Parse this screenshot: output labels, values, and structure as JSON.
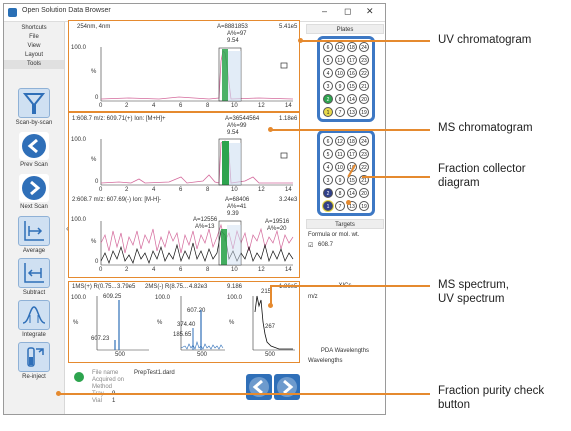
{
  "window": {
    "title": "Open Solution Data Browser",
    "min": "–",
    "max": "◻",
    "close": "✕"
  },
  "menu": [
    "Shortcuts",
    "File",
    "View",
    "Layout",
    "Tools"
  ],
  "tools": [
    {
      "label": "Scan-by-scan",
      "icon": "funnel-icon"
    },
    {
      "label": "Prev Scan",
      "icon": "arrow-left-icon"
    },
    {
      "label": "Next Scan",
      "icon": "arrow-right-icon"
    },
    {
      "label": "Average",
      "icon": "average-icon"
    },
    {
      "label": "Subtract",
      "icon": "subtract-icon"
    },
    {
      "label": "Integrate",
      "icon": "integrate-icon"
    },
    {
      "label": "Re-inject",
      "icon": "reinject-icon"
    }
  ],
  "uv_panel": {
    "title": "254nm, 4nm",
    "area": "A=8881853",
    "pct": "A%=97",
    "tt": "9.54",
    "scale": "5.41e5",
    "y_top": "100.0",
    "y_unit": "%",
    "y_bot": "0",
    "xticks": [
      "0",
      "2",
      "4",
      "6",
      "8",
      "10",
      "12",
      "14"
    ]
  },
  "ms_panel1": {
    "title": "1:608.7 m/z: 609.71(+) Ion: [M+H]+",
    "area": "A=36544564",
    "pct": "A%=99",
    "tt": "9.54",
    "scale": "1.18e6",
    "y_top": "100.0",
    "y_unit": "%",
    "y_bot": "0",
    "xticks": [
      "0",
      "2",
      "4",
      "6",
      "8",
      "10",
      "12",
      "14"
    ]
  },
  "ms_panel2": {
    "title": "2:608.7 m/z: 607.69(-) Ion: [M-H]-",
    "area": "A=68406",
    "pct": "A%=41",
    "tt": "9.39",
    "scale": "3.24e3",
    "ann": [
      "A=12556",
      "A%=13",
      "A=19516",
      "A%=20"
    ],
    "y_top": "100.0",
    "y_unit": "%",
    "y_bot": "0",
    "xticks": [
      "0",
      "2",
      "4",
      "6",
      "8",
      "10",
      "12",
      "14"
    ]
  },
  "spectra": {
    "header": [
      "1MS(+) R(0.75...",
      "3.79e5",
      "2MS(-) R(8.75...",
      "4.82e3",
      "9.186",
      "1.86e5"
    ],
    "s1": [
      "609.25",
      "607.23"
    ],
    "s2": [
      "607.20",
      "374.40",
      "185.65"
    ],
    "s3": [
      "215",
      "267"
    ],
    "y_top": "100.0",
    "y_unit": "%",
    "xtick": "500",
    "xtick3": "500"
  },
  "bottom": {
    "file_label": "File name",
    "file": "PrepTest1.dard",
    "acq": "Acquired on",
    "method": "Method",
    "tray_label": "Tray",
    "tray": "9",
    "vial_label": "Vial",
    "vial": "1"
  },
  "right": {
    "plates": "Plates",
    "targets": "Targets",
    "formula": "Formula or mol. wt.",
    "formula_val": "608.7",
    "xics": "XICs",
    "mz": "m/z",
    "pda": "PDA Wavelengths",
    "wl": "Wavelengths",
    "plate1": [
      "6",
      "12",
      "18",
      "24",
      "5",
      "11",
      "17",
      "23",
      "4",
      "10",
      "16",
      "22",
      "3",
      "9",
      "15",
      "21",
      "2",
      "8",
      "14",
      "20",
      "1",
      "7",
      "13",
      "19"
    ],
    "plate2": [
      "6",
      "12",
      "18",
      "24",
      "5",
      "11",
      "17",
      "23",
      "4",
      "10",
      "16",
      "22",
      "3",
      "9",
      "15",
      "21",
      "2",
      "8",
      "14",
      "20",
      "1",
      "7",
      "13",
      "19"
    ]
  },
  "callouts": {
    "uv": "UV chromatogram",
    "ms": "MS chromatogram",
    "frac": "Fraction collector diagram",
    "frac1": "Fraction collector",
    "frac2": "diagram",
    "spec1": "MS spectrum,",
    "spec2": "UV spectrum",
    "pur1": "Fraction purity check",
    "pur2": "button"
  },
  "colors": {
    "accent": "#e58a2f",
    "plate": "#3d78c4",
    "green": "#2da44e",
    "pink": "#d46a9c"
  }
}
